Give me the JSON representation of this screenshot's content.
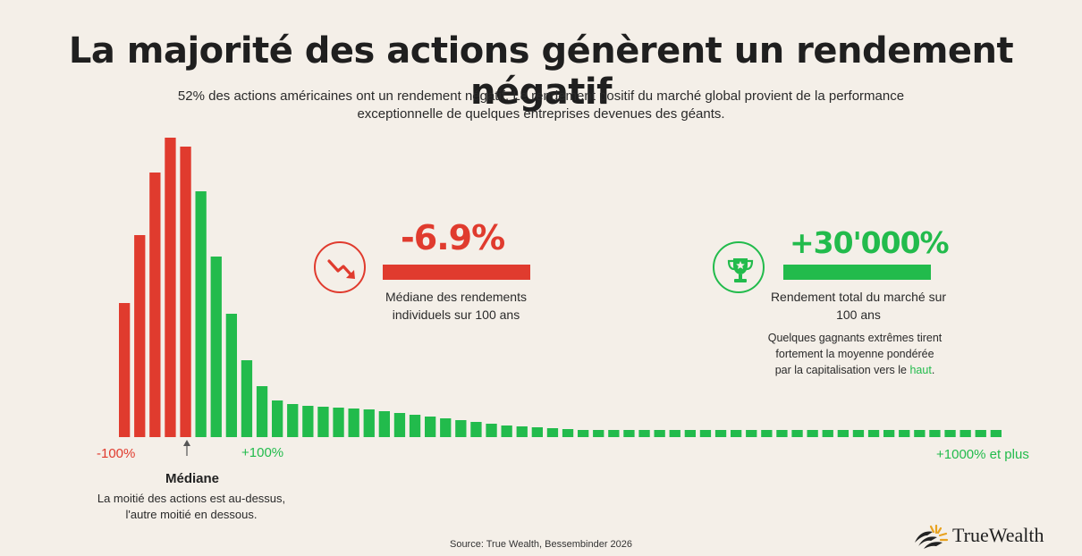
{
  "title": "La majorité des actions génèrent un rendement négatif",
  "subtitle": "52% des actions américaines ont un rendement négatif. Le rendement positif du marché global provient de la performance exceptionnelle de quelques entreprises devenues des géants.",
  "colors": {
    "negative": "#e03b2e",
    "positive": "#22bb4c",
    "background": "#f4efe8"
  },
  "axis": {
    "left_label": "-100%",
    "mid_label": "+100%",
    "right_label": "+1000% et plus"
  },
  "median": {
    "title": "Médiane",
    "description": "La moitié des actions est au-dessus, l'autre moitié en dessous."
  },
  "stat_negative": {
    "value": "-6.9%",
    "label": "Médiane des rendements individuels sur 100 ans",
    "icon": "trending-down-icon"
  },
  "stat_positive": {
    "value": "+30'000%",
    "label": "Rendement total du marché sur 100 ans",
    "note_before": "Quelques gagnants extrêmes tirent fortement la moyenne pondérée par la capitalisation vers le ",
    "note_highlight": "haut",
    "note_after": ".",
    "icon": "trophy-icon"
  },
  "source": "Source: True Wealth, Bessembinder 2026",
  "brand": {
    "name": "TrueWealth",
    "logo": "truewealth-logo-icon"
  },
  "chart_data": {
    "type": "bar",
    "negative_count": 5,
    "values": [
      150,
      226,
      296,
      335,
      325,
      275,
      202,
      138,
      86,
      57,
      41,
      37,
      35,
      34,
      33,
      32,
      31,
      29,
      27,
      25,
      23,
      21,
      19,
      17,
      15,
      13,
      12,
      11,
      10,
      9,
      8,
      8,
      8,
      8,
      8,
      8,
      8,
      8,
      8,
      8,
      8,
      8,
      8,
      8,
      8,
      8,
      8,
      8,
      8,
      8,
      8,
      8,
      8,
      8,
      8,
      8,
      8,
      8
    ]
  }
}
